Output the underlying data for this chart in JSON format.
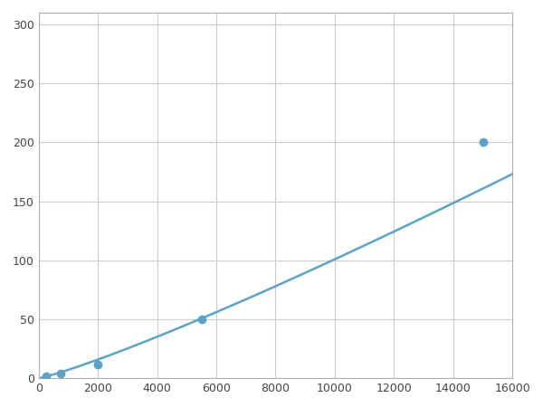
{
  "x": [
    250,
    750,
    2000,
    5500,
    15000
  ],
  "y": [
    2,
    4,
    12,
    50,
    200
  ],
  "line_color": "#5ba3c9",
  "marker_color": "#5ba3c9",
  "marker_size": 6,
  "marker_style": "o",
  "xlim": [
    0,
    16000
  ],
  "ylim": [
    0,
    310
  ],
  "xticks": [
    0,
    2000,
    4000,
    6000,
    8000,
    10000,
    12000,
    14000,
    16000
  ],
  "yticks": [
    0,
    50,
    100,
    150,
    200,
    250,
    300
  ],
  "grid": true,
  "grid_color": "#cccccc",
  "background_color": "#ffffff",
  "line_width": 1.8
}
